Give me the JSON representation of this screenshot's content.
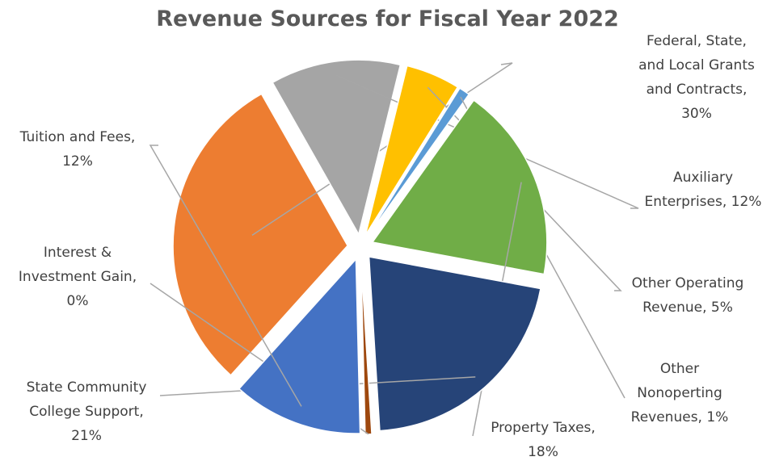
{
  "chart_data": {
    "type": "pie",
    "title": "Revenue Sources for Fiscal Year 2022",
    "unit": "%",
    "slices": [
      {
        "name": "Federal, State, and Local Grants and Contracts",
        "value": 30,
        "color": "#ED7D31",
        "label_lines": [
          "Federal, State,",
          "and Local Grants",
          "and Contracts,",
          "30%"
        ]
      },
      {
        "name": "Auxiliary Enterprises",
        "value": 12,
        "color": "#A5A5A5",
        "label_lines": [
          "Auxiliary",
          "Enterprises, 12%"
        ]
      },
      {
        "name": "Other Operating Revenue",
        "value": 5,
        "color": "#FFC000",
        "label_lines": [
          "Other Operating",
          "Revenue, 5%"
        ]
      },
      {
        "name": "Other Nonoperting Revenues",
        "value": 1,
        "color": "#5B9BD5",
        "label_lines": [
          "Other",
          "Nonoperting",
          "Revenues, 1%"
        ]
      },
      {
        "name": "Property Taxes",
        "value": 18,
        "color": "#70AD47",
        "label_lines": [
          "Property Taxes,",
          "18%"
        ]
      },
      {
        "name": "State Community College Support",
        "value": 21,
        "color": "#264478",
        "label_lines": [
          "State Community",
          "College Support,",
          "21%"
        ]
      },
      {
        "name": "Interest & Investment Gain",
        "value": 0,
        "color": "#9E480E",
        "label_lines": [
          "Interest &",
          "Investment Gain,",
          "0%"
        ]
      },
      {
        "name": "Tuition and Fees",
        "value": 12,
        "color": "#4472C4",
        "label_lines": [
          "Tuition and Fees,",
          "12%"
        ]
      }
    ],
    "exploded": true,
    "leader_lines": true,
    "legend": "none"
  }
}
